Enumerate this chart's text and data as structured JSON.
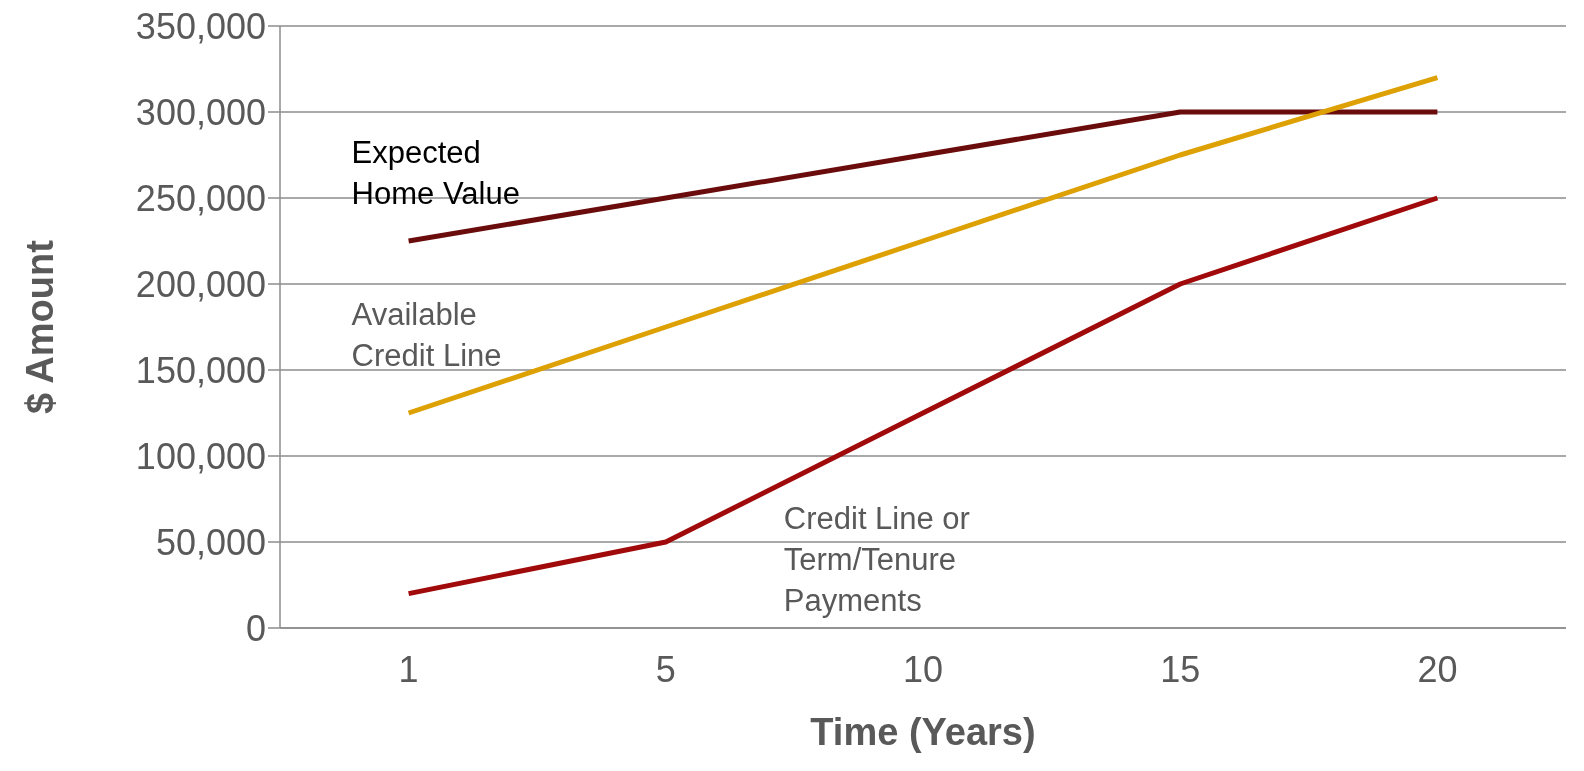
{
  "chart_data": {
    "type": "line",
    "xlabel": "Time (Years)",
    "ylabel": "$ Amount",
    "categories": [
      "1",
      "5",
      "10",
      "15",
      "20"
    ],
    "series": [
      {
        "name": "Expected Home Value",
        "color": "#6b0c0c",
        "values": [
          225000,
          250000,
          275000,
          300000,
          300000
        ]
      },
      {
        "name": "Available Credit Line",
        "color": "#dea104",
        "values": [
          125000,
          175000,
          225000,
          275000,
          320000
        ]
      },
      {
        "name": "Credit Line or Term/Tenure Payments",
        "color": "#a00a0a",
        "values": [
          20000,
          50000,
          125000,
          200000,
          250000
        ]
      }
    ],
    "ylim": [
      0,
      350000
    ],
    "yticks": [
      {
        "value": 0,
        "label": "0"
      },
      {
        "value": 50000,
        "label": "50,000"
      },
      {
        "value": 100000,
        "label": "100,000"
      },
      {
        "value": 150000,
        "label": "150,000"
      },
      {
        "value": 200000,
        "label": "200,000"
      },
      {
        "value": 250000,
        "label": "250,000"
      },
      {
        "value": 300000,
        "label": "300,000"
      },
      {
        "value": 350000,
        "label": "350,000"
      }
    ],
    "grid": "y",
    "legend": false,
    "marker": "none",
    "line_style": "solid"
  }
}
